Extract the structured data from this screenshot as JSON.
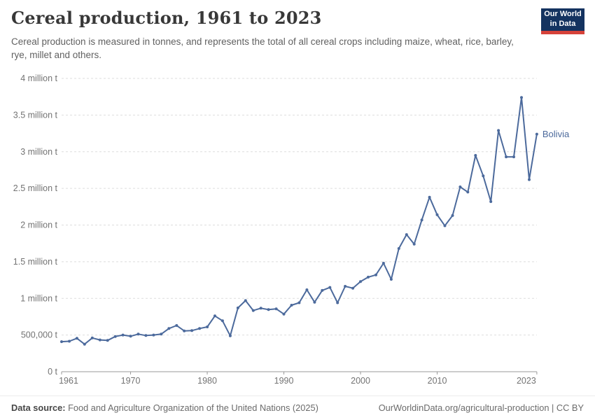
{
  "header": {
    "title": "Cereal production, 1961 to 2023",
    "subtitle": "Cereal production is measured in tonnes, and represents the total of all cereal crops including maize, wheat, rice, barley, rye, millet and others.",
    "logo": {
      "line1": "Our World",
      "line2": "in Data"
    }
  },
  "chart_data": {
    "type": "line",
    "title": "Cereal production, 1961 to 2023",
    "ylabel": "tonnes",
    "xlabel": "",
    "grid": "horizontal-dashed",
    "legend_position": "end-of-line-label",
    "xlim": [
      1961,
      2023
    ],
    "ylim": [
      0,
      4000000
    ],
    "x_tick_years": [
      1961,
      1970,
      1980,
      1990,
      2000,
      2010,
      2023
    ],
    "y_ticks": [
      {
        "value": 0,
        "label": "0 t"
      },
      {
        "value": 500000,
        "label": "500,000 t"
      },
      {
        "value": 1000000,
        "label": "1 million t"
      },
      {
        "value": 1500000,
        "label": "1.5 million t"
      },
      {
        "value": 2000000,
        "label": "2 million t"
      },
      {
        "value": 2500000,
        "label": "2.5 million t"
      },
      {
        "value": 3000000,
        "label": "3 million t"
      },
      {
        "value": 3500000,
        "label": "3.5 million t"
      },
      {
        "value": 4000000,
        "label": "4 million t"
      }
    ],
    "years": [
      1961,
      1962,
      1963,
      1964,
      1965,
      1966,
      1967,
      1968,
      1969,
      1970,
      1971,
      1972,
      1973,
      1974,
      1975,
      1976,
      1977,
      1978,
      1979,
      1980,
      1981,
      1982,
      1983,
      1984,
      1985,
      1986,
      1987,
      1988,
      1989,
      1990,
      1991,
      1992,
      1993,
      1994,
      1995,
      1996,
      1997,
      1998,
      1999,
      2000,
      2001,
      2002,
      2003,
      2004,
      2005,
      2006,
      2007,
      2008,
      2009,
      2010,
      2011,
      2012,
      2013,
      2014,
      2015,
      2016,
      2017,
      2018,
      2019,
      2020,
      2021,
      2022,
      2023
    ],
    "series": [
      {
        "name": "Bolivia",
        "color": "#4c6a9c",
        "values": [
          410000,
          415000,
          455000,
          375000,
          460000,
          433000,
          427000,
          480000,
          500000,
          484000,
          513000,
          494000,
          500000,
          513000,
          589000,
          630000,
          557000,
          560000,
          589000,
          611000,
          761000,
          694000,
          490000,
          870000,
          970000,
          834000,
          866000,
          847000,
          857000,
          786000,
          907000,
          940000,
          1117000,
          948000,
          1108000,
          1149000,
          940000,
          1165000,
          1139000,
          1230000,
          1290000,
          1320000,
          1480000,
          1260000,
          1680000,
          1870000,
          1740000,
          2070000,
          2380000,
          2140000,
          1990000,
          2130000,
          2520000,
          2450000,
          2950000,
          2670000,
          2320000,
          3290000,
          2930000,
          2930000,
          3740000,
          2620000,
          3240000
        ]
      }
    ],
    "colors": {
      "line": "#4c6a9c",
      "gridline": "#dddddd",
      "axis": "#999999",
      "tick_text": "#737373"
    }
  },
  "footer": {
    "source_label": "Data source:",
    "source_text": " Food and Agriculture Organization of the United Nations (2025)",
    "credit": "OurWorldinData.org/agricultural-production | CC BY"
  }
}
